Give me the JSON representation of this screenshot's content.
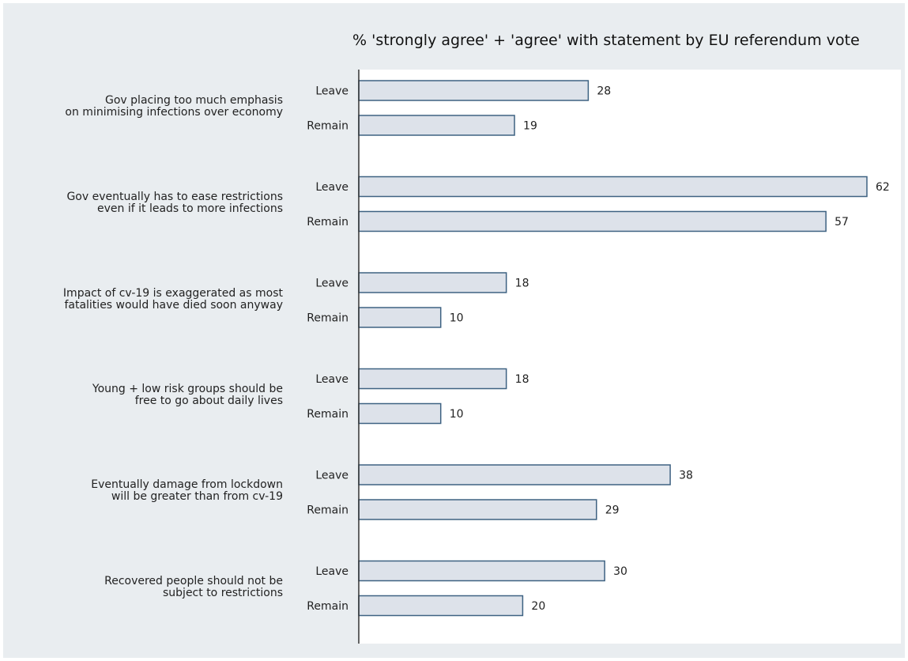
{
  "chart_data": {
    "type": "bar",
    "orientation": "horizontal",
    "title": "% 'strongly agree' + 'agree' with statement by EU referendum vote",
    "xlabel": "",
    "ylabel": "",
    "xlim": [
      0,
      62
    ],
    "grid": false,
    "colors": {
      "bar_fill": "#dde2ea",
      "bar_stroke": "#3e6282",
      "background": "#e9edf0",
      "plot_bg": "#ffffff"
    },
    "groups": [
      {
        "label_lines": [
          "Gov placing too much emphasis",
          "on minimising infections over economy"
        ],
        "bars": [
          {
            "label": "Leave",
            "value": 28
          },
          {
            "label": "Remain",
            "value": 19
          }
        ]
      },
      {
        "label_lines": [
          "Gov eventually has to ease restrictions",
          "even if it leads to more infections"
        ],
        "bars": [
          {
            "label": "Leave",
            "value": 62
          },
          {
            "label": "Remain",
            "value": 57
          }
        ]
      },
      {
        "label_lines": [
          "Impact of cv-19 is exaggerated as most",
          "fatalities would have died soon anyway"
        ],
        "bars": [
          {
            "label": "Leave",
            "value": 18
          },
          {
            "label": "Remain",
            "value": 10
          }
        ]
      },
      {
        "label_lines": [
          "Young + low risk groups should be",
          "free to go about daily lives"
        ],
        "bars": [
          {
            "label": "Leave",
            "value": 18
          },
          {
            "label": "Remain",
            "value": 10
          }
        ]
      },
      {
        "label_lines": [
          "Eventually damage from lockdown",
          "will be greater than from cv-19"
        ],
        "bars": [
          {
            "label": "Leave",
            "value": 38
          },
          {
            "label": "Remain",
            "value": 29
          }
        ]
      },
      {
        "label_lines": [
          "Recovered people should not be",
          "subject to restrictions"
        ],
        "bars": [
          {
            "label": "Leave",
            "value": 30
          },
          {
            "label": "Remain",
            "value": 20
          }
        ]
      }
    ]
  }
}
